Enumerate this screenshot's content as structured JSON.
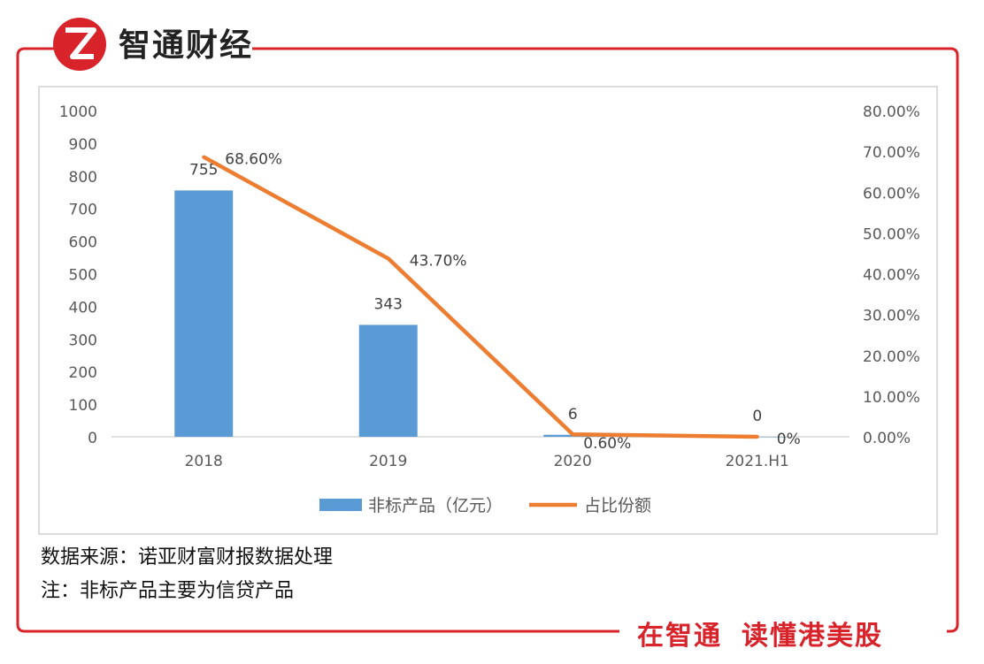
{
  "brand": {
    "name": "智通财经",
    "slogan_left": "在智通",
    "slogan_right": "读懂港美股",
    "accent_color": "#d9232b"
  },
  "footer": {
    "source": "数据来源：诺亚财富财报数据处理",
    "note": "注：非标产品主要为信贷产品"
  },
  "chart_data": {
    "type": "bar",
    "categories": [
      "2018",
      "2019",
      "2020",
      "2021.H1"
    ],
    "series": [
      {
        "name": "非标产品（亿元）",
        "type": "bar",
        "axis": "left",
        "color": "#5b9bd5",
        "values": [
          755,
          343,
          6,
          0
        ],
        "labels": [
          "755",
          "343",
          "6",
          "0"
        ]
      },
      {
        "name": "占比份额",
        "type": "line",
        "axis": "right",
        "color": "#ed7d31",
        "values": [
          68.6,
          43.7,
          0.6,
          0
        ],
        "labels": [
          "68.60%",
          "43.70%",
          "0.60%",
          "0%"
        ]
      }
    ],
    "y_left": {
      "min": 0,
      "max": 1000,
      "ticks": [
        "0",
        "100",
        "200",
        "300",
        "400",
        "500",
        "600",
        "700",
        "800",
        "900",
        "1000"
      ]
    },
    "y_right": {
      "min": 0,
      "max": 80,
      "ticks": [
        "0.00%",
        "10.00%",
        "20.00%",
        "30.00%",
        "40.00%",
        "50.00%",
        "60.00%",
        "70.00%",
        "80.00%"
      ]
    },
    "grid": false,
    "legend_position": "bottom"
  }
}
